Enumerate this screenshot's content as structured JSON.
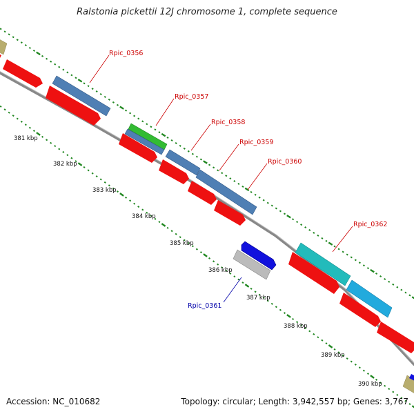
{
  "title": "Ralstonia pickettii 12J chromosome 1, complete sequence",
  "footer": {
    "accession": "Accession: NC_010682",
    "summary": "Topology: circular; Length: 3,942,557 bp; Genes: 3,767"
  },
  "colors": {
    "cds_red": "#ee1111",
    "gene_steelblue": "#4f7fb4",
    "gene_green": "#33bb33",
    "gene_blue": "#1111dd",
    "gene_gray": "#bbbbbb",
    "gene_teal": "#22bbbb",
    "gene_cyan": "#22aadd",
    "gene_tan": "#b8ad6e",
    "backbone": "#888888",
    "tick": "#228822",
    "label_red": "#cc0000",
    "label_blue": "#0000aa"
  },
  "kbp_labels": [
    "381 kbp",
    "382 kbp",
    "383 kbp",
    "384 kbp",
    "385 kbp",
    "386 kbp",
    "387 kbp",
    "388 kbp",
    "389 kbp",
    "390 kbp"
  ],
  "gene_labels": [
    {
      "name": "Rpic_0356",
      "color": "red"
    },
    {
      "name": "Rpic_0357",
      "color": "red"
    },
    {
      "name": "Rpic_0358",
      "color": "red"
    },
    {
      "name": "Rpic_0359",
      "color": "red"
    },
    {
      "name": "Rpic_0360",
      "color": "red"
    },
    {
      "name": "Rpic_0362",
      "color": "red"
    },
    {
      "name": "Rpic_0361",
      "color": "blue"
    }
  ]
}
